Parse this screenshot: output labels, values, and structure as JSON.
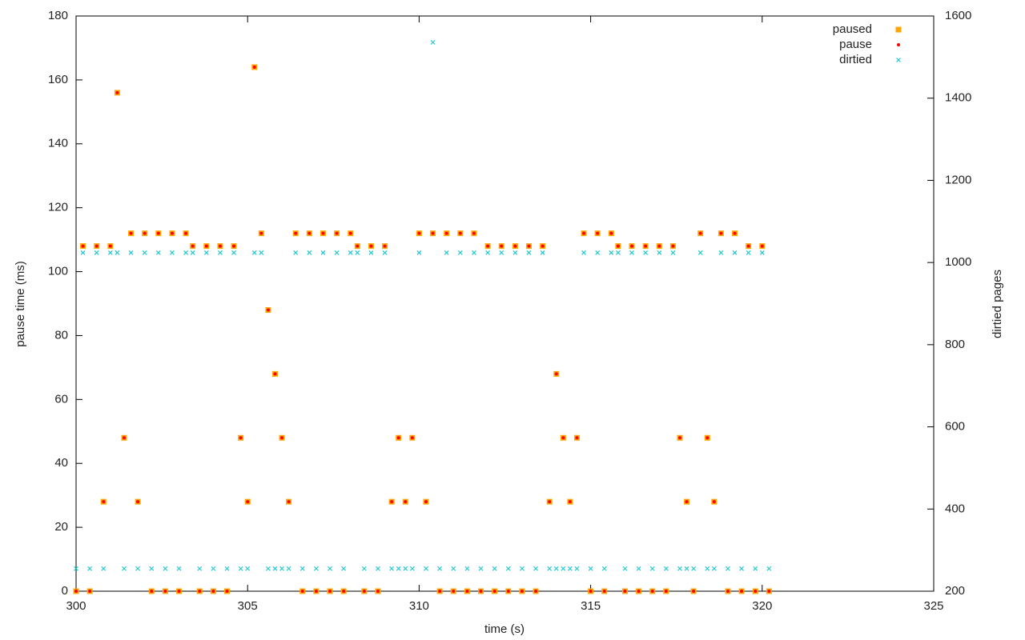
{
  "chart_data": {
    "type": "scatter",
    "x_label": "time (s)",
    "y_label": "pause time (ms)",
    "y2_label": "dirtied pages",
    "xlim": [
      300,
      325
    ],
    "xticks": [
      300,
      305,
      310,
      315,
      320,
      325
    ],
    "ylim": [
      0,
      180
    ],
    "yticks": [
      0,
      20,
      40,
      60,
      80,
      100,
      120,
      140,
      160,
      180
    ],
    "y2lim": [
      200,
      1600
    ],
    "y2ticks": [
      200,
      400,
      600,
      800,
      1000,
      1200,
      1400,
      1600
    ],
    "legend": "top-right",
    "x": [
      300,
      300.2,
      300.4,
      300.6,
      300.8,
      301,
      301.2,
      301.4,
      301.6,
      301.8,
      302,
      302.2,
      302.4,
      302.6,
      302.8,
      303,
      303.2,
      303.4,
      303.6,
      303.8,
      304,
      304.2,
      304.4,
      304.6,
      304.8,
      305,
      305.2,
      305.4,
      305.6,
      305.8,
      306,
      306.2,
      306.4,
      306.6,
      306.8,
      307,
      307.2,
      307.4,
      307.6,
      307.8,
      308,
      308.2,
      308.4,
      308.6,
      308.8,
      309,
      309.2,
      309.4,
      309.6,
      309.8,
      310,
      310.2,
      310.4,
      310.6,
      310.8,
      311,
      311.2,
      311.4,
      311.6,
      311.8,
      312,
      312.2,
      312.4,
      312.6,
      312.8,
      313,
      313.2,
      313.4,
      313.6,
      313.8,
      314,
      314.2,
      314.4,
      314.6,
      314.8,
      315,
      315.2,
      315.4,
      315.6,
      315.8,
      316,
      316.2,
      316.4,
      316.6,
      316.8,
      317,
      317.2,
      317.4,
      317.6,
      317.8,
      318,
      318.2,
      318.4,
      318.6,
      318.8,
      319,
      319.2,
      319.4,
      319.6,
      319.8,
      320,
      320.2
    ],
    "series": [
      {
        "name": "paused",
        "color": "#ffa500",
        "marker": "square",
        "values": [
          0,
          108,
          0,
          108,
          28,
          108,
          156,
          48,
          112,
          28,
          112,
          0,
          112,
          0,
          112,
          0,
          112,
          108,
          0,
          108,
          0,
          108,
          0,
          108,
          48,
          28,
          164,
          112,
          88,
          68,
          48,
          28,
          112,
          0,
          112,
          0,
          112,
          0,
          112,
          0,
          112,
          108,
          0,
          108,
          0,
          108,
          28,
          48,
          28,
          48,
          112,
          28,
          112,
          0,
          112,
          0,
          112,
          0,
          112,
          0,
          108,
          0,
          108,
          0,
          108,
          0,
          108,
          0,
          108,
          28,
          68,
          48,
          28,
          48,
          112,
          0,
          112,
          0,
          112,
          108,
          0,
          108,
          0,
          108,
          0,
          108,
          0,
          108,
          48,
          28,
          0,
          112,
          48,
          28,
          112,
          0,
          112,
          0,
          108,
          0,
          108,
          0
        ]
      },
      {
        "name": "pause",
        "color": "#ff0000",
        "marker": "circle",
        "values": [
          0,
          108,
          0,
          108,
          28,
          108,
          156,
          48,
          112,
          28,
          112,
          0,
          112,
          0,
          112,
          0,
          112,
          108,
          0,
          108,
          0,
          108,
          0,
          108,
          48,
          28,
          164,
          112,
          88,
          68,
          48,
          28,
          112,
          0,
          112,
          0,
          112,
          0,
          112,
          0,
          112,
          108,
          0,
          108,
          0,
          108,
          28,
          48,
          28,
          48,
          112,
          28,
          112,
          0,
          112,
          0,
          112,
          0,
          112,
          0,
          108,
          0,
          108,
          0,
          108,
          0,
          108,
          0,
          108,
          28,
          68,
          48,
          28,
          48,
          112,
          0,
          112,
          0,
          112,
          108,
          0,
          108,
          0,
          108,
          0,
          108,
          0,
          108,
          48,
          28,
          0,
          112,
          48,
          28,
          112,
          0,
          112,
          0,
          108,
          0,
          108,
          0
        ]
      },
      {
        "name": "dirtied",
        "color": "#1ec8d0",
        "marker": "cross",
        "axis": "y2",
        "values": [
          255,
          1024,
          255,
          1024,
          255,
          1024,
          1024,
          255,
          1024,
          255,
          1024,
          255,
          1024,
          255,
          1024,
          255,
          1024,
          1024,
          255,
          1024,
          255,
          1024,
          255,
          1024,
          255,
          255,
          1024,
          1024,
          255,
          255,
          255,
          255,
          1024,
          255,
          1024,
          255,
          1024,
          255,
          1024,
          255,
          1024,
          1024,
          255,
          1024,
          255,
          1024,
          255,
          255,
          255,
          255,
          1024,
          255,
          1536,
          255,
          1024,
          255,
          1024,
          255,
          1024,
          255,
          1024,
          255,
          1024,
          255,
          1024,
          255,
          1024,
          255,
          1024,
          255,
          255,
          255,
          255,
          255,
          1024,
          255,
          1024,
          255,
          1024,
          1024,
          255,
          1024,
          255,
          1024,
          255,
          1024,
          255,
          1024,
          255,
          255,
          255,
          1024,
          255,
          255,
          1024,
          255,
          1024,
          255,
          1024,
          255,
          1024,
          255
        ]
      }
    ]
  }
}
